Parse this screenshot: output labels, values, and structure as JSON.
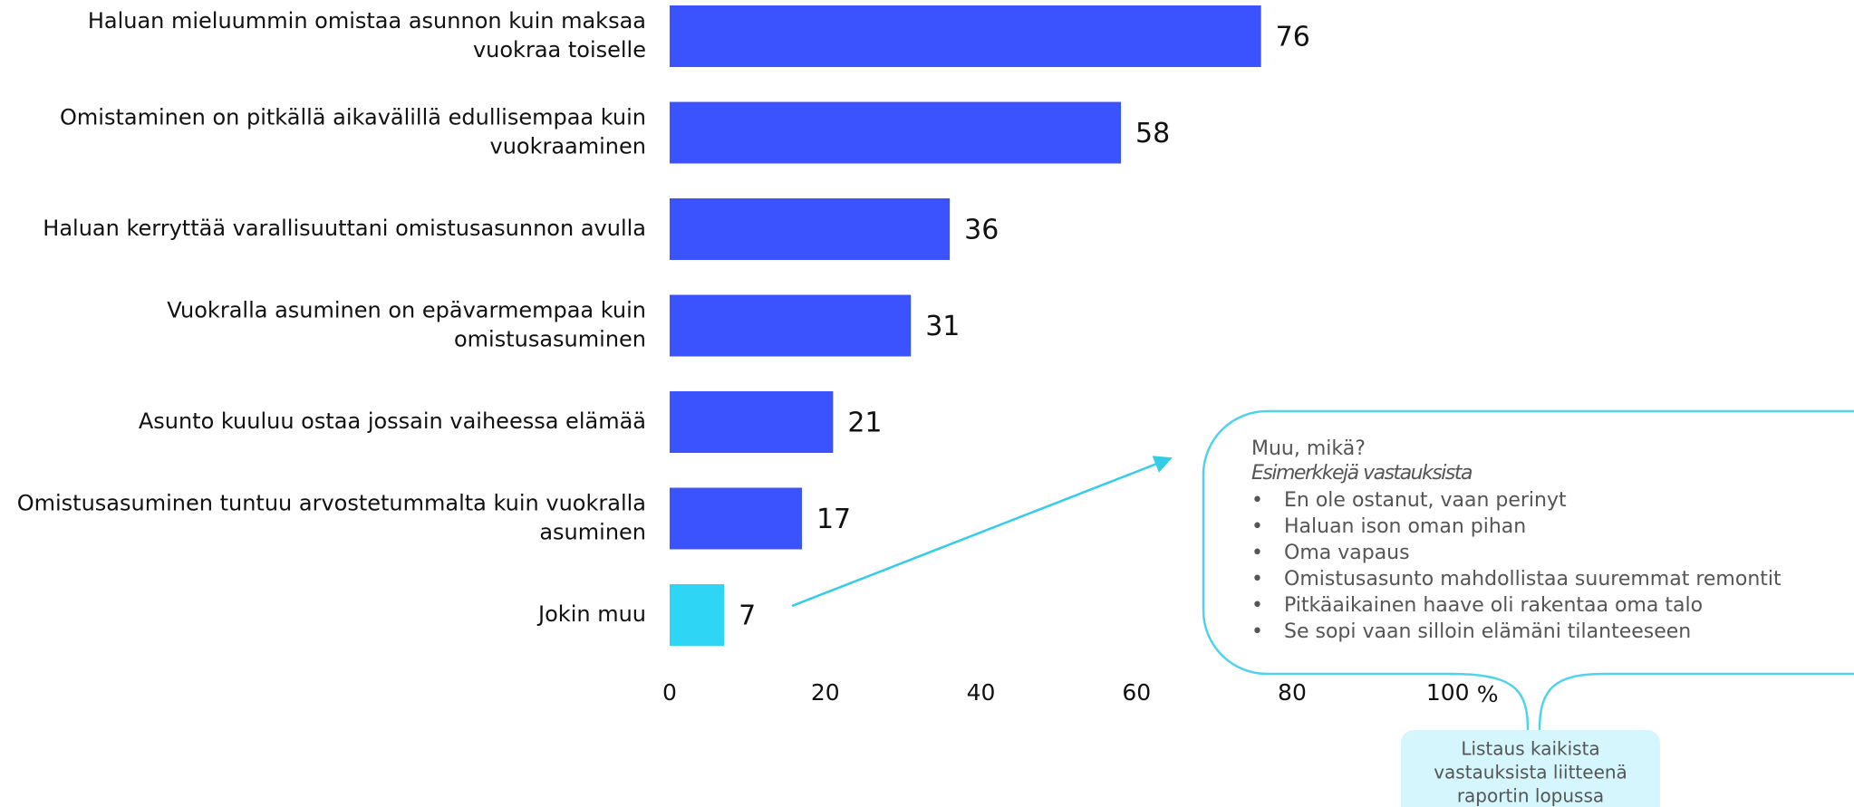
{
  "chart_data": {
    "type": "bar",
    "orientation": "horizontal",
    "categories": [
      "Haluan mieluummin omistaa asunnon kuin maksaa vuokraa toiselle",
      "Omistaminen on pitkällä aikavälillä edullisempaa kuin vuokraaminen",
      "Haluan kerryttää varallisuuttani omistusasunnon avulla",
      "Vuokralla asuminen on epävarmempaa kuin omistusasuminen",
      "Asunto kuuluu ostaa jossain vaiheessa elämää",
      "Omistusasuminen tuntuu arvostetummalta kuin vuokralla asuminen",
      "Jokin muu"
    ],
    "values": [
      76,
      58,
      36,
      31,
      21,
      17,
      7
    ],
    "colors": [
      "#3a53ff",
      "#3a53ff",
      "#3a53ff",
      "#3a53ff",
      "#3a53ff",
      "#3a53ff",
      "#2fd5f4"
    ],
    "xlim": [
      0,
      100
    ],
    "xticks": [
      0,
      20,
      40,
      60,
      80,
      100
    ],
    "x_unit": "%"
  },
  "callout": {
    "title": "Muu, mikä?",
    "subtitle": "Esimerkkejä vastauksista",
    "items": [
      "En ole ostanut, vaan perinyt",
      "Haluan ison oman pihan",
      "Oma vapaus",
      "Omistusasunto mahdollistaa suuremmat remontit",
      "Pitkäaikainen haave oli rakentaa oma talo",
      "Se sopi vaan silloin elämäni tilanteeseen"
    ],
    "note": [
      "Listaus kaikista",
      "vastauksista liitteenä",
      "raportin lopussa"
    ]
  }
}
